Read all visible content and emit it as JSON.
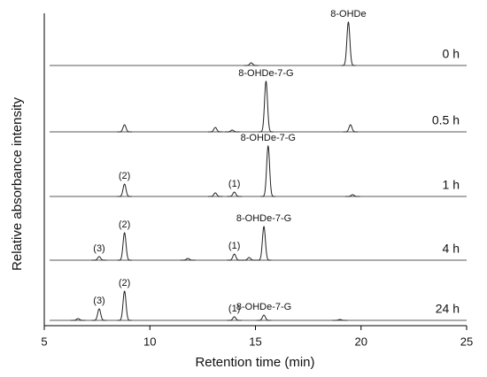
{
  "chart_data": {
    "type": "line",
    "x_label": "Retention time (min)",
    "y_label": "Relative absorbance intensity",
    "xlim": [
      5,
      25
    ],
    "xticks": [
      5,
      10,
      15,
      20,
      25
    ],
    "series": [
      {
        "name": "0 h",
        "color": "#222222",
        "peaks": [
          {
            "x": 14.8,
            "height": 3
          },
          {
            "x": 19.4,
            "height": 49,
            "label": "8-OHDe"
          }
        ]
      },
      {
        "name": "0.5 h",
        "color": "#222222",
        "peaks": [
          {
            "x": 8.8,
            "height": 8
          },
          {
            "x": 13.1,
            "height": 5
          },
          {
            "x": 13.9,
            "height": 2
          },
          {
            "x": 15.5,
            "height": 57,
            "label": "8-OHDe-7-G"
          },
          {
            "x": 19.5,
            "height": 8
          }
        ]
      },
      {
        "name": "1 h",
        "color": "#222222",
        "peaks": [
          {
            "x": 8.8,
            "height": 14,
            "label": "(2)"
          },
          {
            "x": 13.1,
            "height": 4
          },
          {
            "x": 14.0,
            "height": 5,
            "label": "(1)"
          },
          {
            "x": 15.6,
            "height": 57,
            "label": "8-OHDe-7-G"
          },
          {
            "x": 19.6,
            "height": 2
          }
        ]
      },
      {
        "name": "4 h",
        "color": "#222222",
        "peaks": [
          {
            "x": 7.6,
            "height": 4,
            "label": "(3)"
          },
          {
            "x": 8.8,
            "height": 31,
            "label": "(2)"
          },
          {
            "x": 11.8,
            "height": 2
          },
          {
            "x": 14.0,
            "height": 7,
            "label": "(1)"
          },
          {
            "x": 14.7,
            "height": 3
          },
          {
            "x": 15.4,
            "height": 38,
            "label": "8-OHDe-7-G"
          }
        ]
      },
      {
        "name": "24 h",
        "color": "#222222",
        "peaks": [
          {
            "x": 6.6,
            "height": 2
          },
          {
            "x": 7.6,
            "height": 13,
            "label": "(3)"
          },
          {
            "x": 8.8,
            "height": 33,
            "label": "(2)"
          },
          {
            "x": 14.0,
            "height": 4,
            "label": "(1)"
          },
          {
            "x": 15.4,
            "height": 6,
            "label": "8-OHDe-7-G"
          },
          {
            "x": 19.0,
            "height": 1
          }
        ]
      }
    ]
  }
}
